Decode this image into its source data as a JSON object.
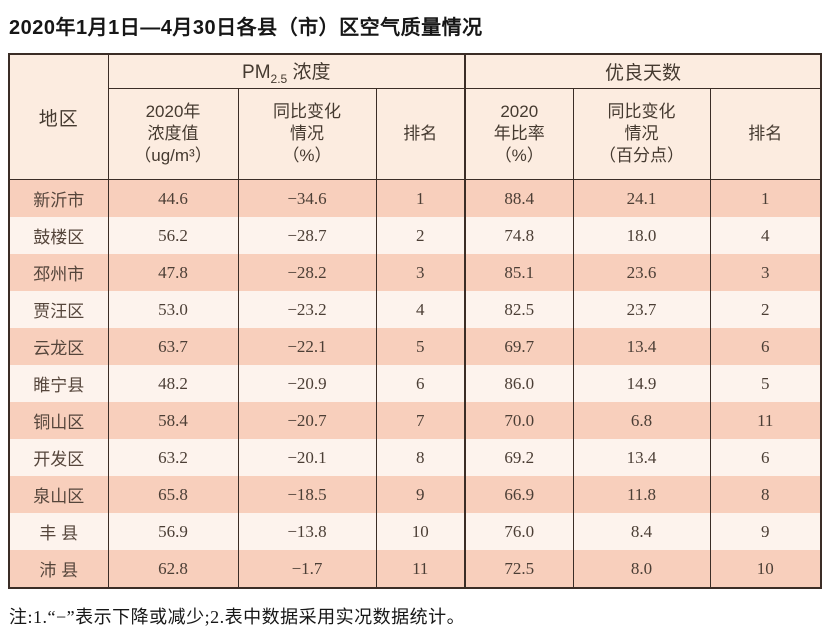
{
  "title": "2020年1月1日—4月30日各县（市）区空气质量情况",
  "table": {
    "region_header": "地区",
    "groups": {
      "pm25": {
        "prefix": "PM",
        "sub": "2.5",
        "suffix": " 浓度"
      },
      "good_days": {
        "label": "优良天数"
      }
    },
    "subheaders": [
      "2020年\n浓度值\n（ug/m³）",
      "同比变化\n情况\n（%）",
      "排名",
      "2020\n年比率\n（%）",
      "同比变化\n情况\n（百分点）",
      "排名"
    ],
    "row_keys": [
      "region",
      "pm_value",
      "pm_change",
      "pm_rank",
      "rate_value",
      "rate_change",
      "rate_rank"
    ],
    "rows": [
      {
        "region": "新沂市",
        "pm_value": "44.6",
        "pm_change": "−34.6",
        "pm_rank": "1",
        "rate_value": "88.4",
        "rate_change": "24.1",
        "rate_rank": "1"
      },
      {
        "region": "鼓楼区",
        "pm_value": "56.2",
        "pm_change": "−28.7",
        "pm_rank": "2",
        "rate_value": "74.8",
        "rate_change": "18.0",
        "rate_rank": "4"
      },
      {
        "region": "邳州市",
        "pm_value": "47.8",
        "pm_change": "−28.2",
        "pm_rank": "3",
        "rate_value": "85.1",
        "rate_change": "23.6",
        "rate_rank": "3"
      },
      {
        "region": "贾汪区",
        "pm_value": "53.0",
        "pm_change": "−23.2",
        "pm_rank": "4",
        "rate_value": "82.5",
        "rate_change": "23.7",
        "rate_rank": "2"
      },
      {
        "region": "云龙区",
        "pm_value": "63.7",
        "pm_change": "−22.1",
        "pm_rank": "5",
        "rate_value": "69.7",
        "rate_change": "13.4",
        "rate_rank": "6"
      },
      {
        "region": "睢宁县",
        "pm_value": "48.2",
        "pm_change": "−20.9",
        "pm_rank": "6",
        "rate_value": "86.0",
        "rate_change": "14.9",
        "rate_rank": "5"
      },
      {
        "region": "铜山区",
        "pm_value": "58.4",
        "pm_change": "−20.7",
        "pm_rank": "7",
        "rate_value": "70.0",
        "rate_change": "6.8",
        "rate_rank": "11"
      },
      {
        "region": "开发区",
        "pm_value": "63.2",
        "pm_change": "−20.1",
        "pm_rank": "8",
        "rate_value": "69.2",
        "rate_change": "13.4",
        "rate_rank": "6"
      },
      {
        "region": "泉山区",
        "pm_value": "65.8",
        "pm_change": "−18.5",
        "pm_rank": "9",
        "rate_value": "66.9",
        "rate_change": "11.8",
        "rate_rank": "8"
      },
      {
        "region": "丰 县",
        "pm_value": "56.9",
        "pm_change": "−13.8",
        "pm_rank": "10",
        "rate_value": "76.0",
        "rate_change": "8.4",
        "rate_rank": "9"
      },
      {
        "region": "沛 县",
        "pm_value": "62.8",
        "pm_change": "−1.7",
        "pm_rank": "11",
        "rate_value": "72.5",
        "rate_change": "8.0",
        "rate_rank": "10"
      }
    ]
  },
  "footnote": "注:1.“−”表示下降或减少;2.表中数据采用实况数据统计。"
}
